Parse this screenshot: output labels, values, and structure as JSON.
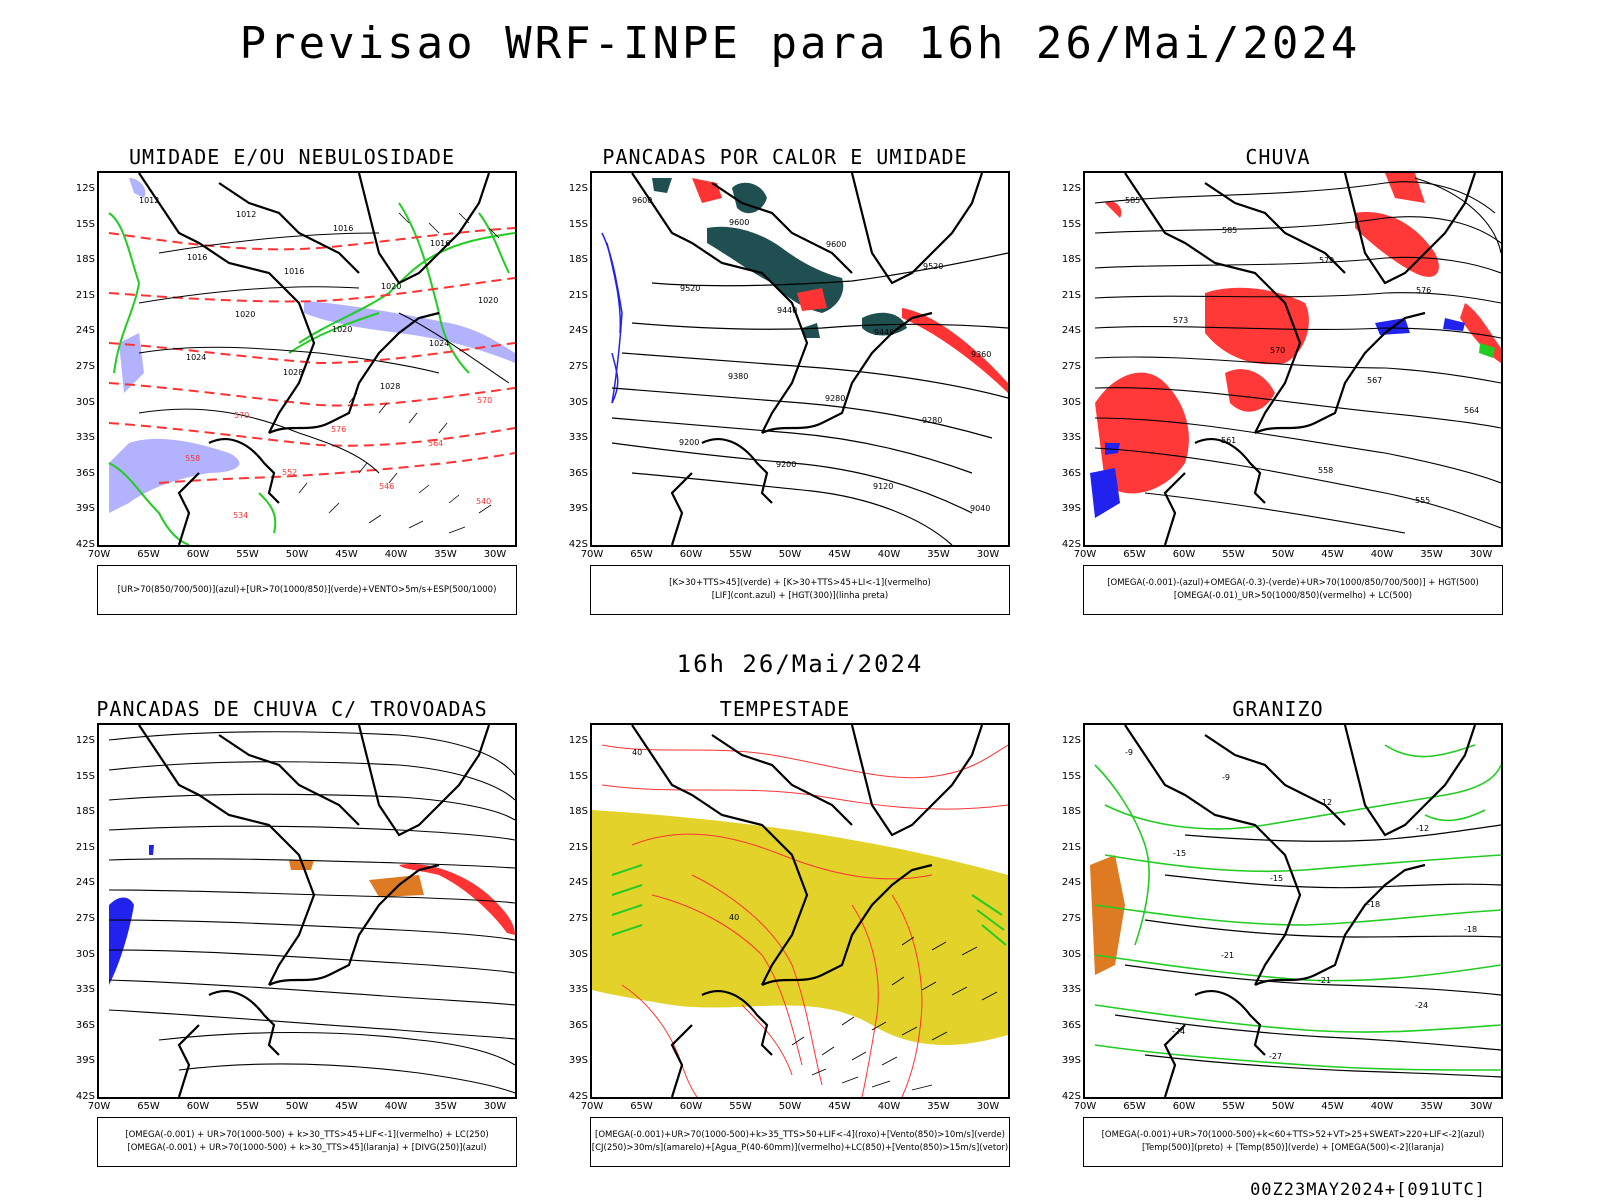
{
  "header": {
    "title": "Previsao WRF-INPE  para 16h 26/Mai/2024",
    "mid_title": "16h 26/Mai/2024",
    "footer": "00Z23MAY2024+[091UTC]"
  },
  "colors": {
    "humidity_blue": "#aaaaff",
    "humidity_green": "#22cc22",
    "contour_red": "#ff3333",
    "heat_dark": "#1f4f50",
    "rain_red": "#ff2e2e",
    "rain_blue": "#2222ee",
    "storm_yellow": "#e3d22a",
    "hail_orange": "#dd7a22"
  },
  "axes": {
    "y_ticks": [
      "12S",
      "15S",
      "18S",
      "21S",
      "24S",
      "27S",
      "30S",
      "33S",
      "36S",
      "39S",
      "42S"
    ],
    "x_ticks": [
      "70W",
      "65W",
      "60W",
      "55W",
      "50W",
      "45W",
      "40W",
      "35W",
      "30W"
    ]
  },
  "chart_data": [
    {
      "type": "map",
      "title": "UMIDADE E/OU NEBULOSIDADE",
      "legend": [
        "[UR>70(850/700/500)](azul)+[UR>70(1000/850)](verde)+VENTO>5m/s+ESP(500/1000)"
      ],
      "contour_labels": [
        "1012",
        "1012",
        "1016",
        "1016",
        "1016",
        "1016",
        "1020",
        "1020",
        "1020",
        "1020",
        "1024",
        "1024",
        "1028",
        "1028",
        "570",
        "570",
        "576",
        "564",
        "558",
        "552",
        "546",
        "540",
        "534"
      ],
      "lon_range": [
        -70,
        -28
      ],
      "lat_range": [
        -42,
        -10
      ]
    },
    {
      "type": "map",
      "title": "PANCADAS POR CALOR E UMIDADE",
      "legend": [
        "[K>30+TTS>45](verde) + [K>30+TTS>45+LI<-1](vermelho)",
        "[LIF](cont.azul) + [HGT(300)](linha preta)"
      ],
      "contour_labels": [
        "9600",
        "9600",
        "9600",
        "9520",
        "9520",
        "9440",
        "9440",
        "9360",
        "9380",
        "9280",
        "9280",
        "9200",
        "9200",
        "9120",
        "9040"
      ],
      "lon_range": [
        -70,
        -28
      ],
      "lat_range": [
        -42,
        -10
      ]
    },
    {
      "type": "map",
      "title": "CHUVA",
      "legend": [
        "[OMEGA(-0.001)-(azul)+OMEGA(-0.3)-(verde)+UR>70(1000/850/700/500)] + HGT(500)",
        "[OMEGA(-0.01)_UR>50(1000/850)(vermelho) + LC(500)"
      ],
      "contour_labels": [
        "585",
        "585",
        "579",
        "576",
        "573",
        "570",
        "567",
        "564",
        "561",
        "558",
        "555"
      ],
      "lon_range": [
        -70,
        -28
      ],
      "lat_range": [
        -42,
        -10
      ]
    },
    {
      "type": "map",
      "title": "PANCADAS DE CHUVA C/ TROVOADAS",
      "legend": [
        "[OMEGA(-0.001) + UR>70(1000-500) + k>30_TTS>45+LIF<-1](vermelho) + LC(250)",
        "[OMEGA(-0.001) + UR>70(1000-500) + k>30_TTS>45](laranja) + [DIVG(250)](azul)"
      ],
      "contour_labels": [],
      "lon_range": [
        -70,
        -28
      ],
      "lat_range": [
        -42,
        -10
      ]
    },
    {
      "type": "map",
      "title": "TEMPESTADE",
      "legend": [
        "[OMEGA(-0.001)+UR>70(1000-500)+k>35_TTS>50+LIF<-4](roxo)+[Vento(850)>10m/s](verde)",
        "[CJ(250)>30m/s](amarelo)+[Agua_P(40-60mm)](vermelho)+LC(850)+[Vento(850)>15m/s](vetor)"
      ],
      "contour_labels": [
        "40",
        "40"
      ],
      "lon_range": [
        -70,
        -28
      ],
      "lat_range": [
        -42,
        -10
      ]
    },
    {
      "type": "map",
      "title": "GRANIZO",
      "legend": [
        "[OMEGA(-0.001)+UR>70(1000-500)+k<60+TTS>52+VT>25+SWEAT>220+LIF<-2](azul)",
        "[Temp(500)](preto) + [Temp(850)](verde) + [OMEGA(500)<-2](laranja)"
      ],
      "contour_labels": [
        "-9",
        "-9",
        "-12",
        "-12",
        "-15",
        "-15",
        "-18",
        "-18",
        "-21",
        "-21",
        "-24",
        "-24",
        "-27"
      ],
      "lon_range": [
        -70,
        -28
      ],
      "lat_range": [
        -42,
        -10
      ]
    }
  ]
}
